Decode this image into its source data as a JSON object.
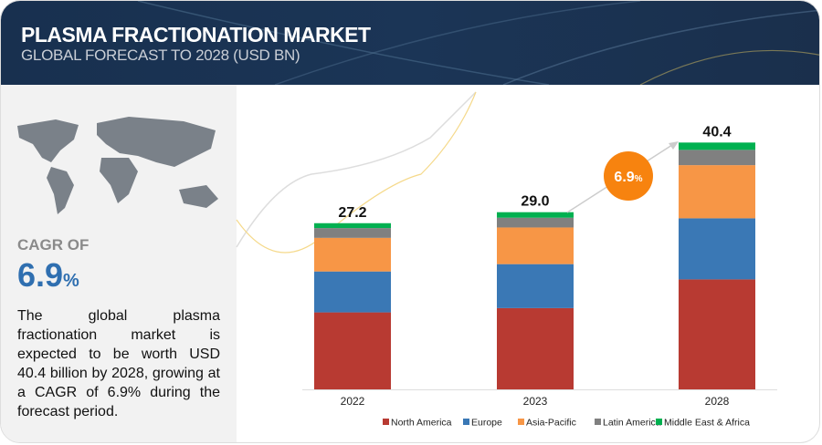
{
  "header": {
    "title": "PLASMA FRACTIONATION MARKET",
    "subtitle": "GLOBAL FORECAST TO 2028 (USD BN)"
  },
  "sidebar": {
    "cagr_label": "CAGR OF",
    "cagr_value": "6.9",
    "cagr_unit": "%",
    "description": "The global plasma fractionation market is expected to be worth USD 40.4 billion by 2028, growing at a CAGR of 6.9% during the forecast period."
  },
  "chart_data": {
    "type": "bar",
    "stacked": true,
    "categories": [
      "2022",
      "2023",
      "2028"
    ],
    "totals": [
      "27.2",
      "29.0",
      "40.4"
    ],
    "series": [
      {
        "name": "North America",
        "color": "#b83a32",
        "values": [
          12.6,
          13.3,
          18.0
        ]
      },
      {
        "name": "Europe",
        "color": "#3a78b5",
        "values": [
          6.7,
          7.2,
          10.0
        ]
      },
      {
        "name": "Asia-Pacific",
        "color": "#f79646",
        "values": [
          5.5,
          6.0,
          8.7
        ]
      },
      {
        "name": "Latin America",
        "color": "#808080",
        "values": [
          1.6,
          1.6,
          2.5
        ]
      },
      {
        "name": "Middle East & Africa",
        "color": "#00b050",
        "values": [
          0.8,
          0.9,
          1.2
        ]
      }
    ],
    "annotation": {
      "value": "6.9",
      "unit": "%",
      "color": "#f7830f"
    },
    "legend": "bottom"
  }
}
